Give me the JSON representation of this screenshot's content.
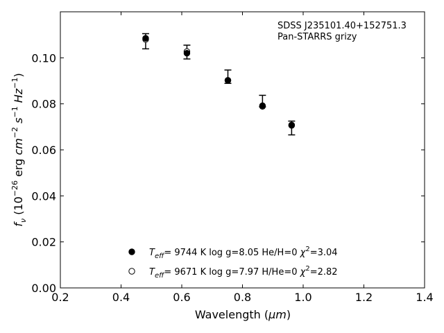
{
  "chart_data": {
    "type": "scatter",
    "annotation": [
      "SDSS J235101.40+152751.3",
      "Pan-STARRS grizy"
    ],
    "xlabel": "Wavelength (μm)",
    "ylabel": "f_ν (10^-26 erg cm^-2 s^-1 Hz^-1)",
    "xlim": [
      0.2,
      1.4
    ],
    "ylim": [
      0.0,
      0.12
    ],
    "xticks": [
      0.2,
      0.4,
      0.6,
      0.8,
      1.0,
      1.2,
      1.4
    ],
    "xtick_labels": [
      "0.2",
      "0.4",
      "0.6",
      "0.8",
      "1.0",
      "1.2",
      "1.4"
    ],
    "yticks": [
      0.0,
      0.02,
      0.04,
      0.06,
      0.08,
      0.1
    ],
    "ytick_labels": [
      "0.00",
      "0.02",
      "0.04",
      "0.06",
      "0.08",
      "0.10"
    ],
    "grid": false,
    "observed": {
      "x": [
        0.481,
        0.617,
        0.752,
        0.866,
        0.962
      ],
      "y": [
        0.1072,
        0.1025,
        0.0918,
        0.0812,
        0.0695
      ],
      "yerr": [
        0.0033,
        0.003,
        0.0029,
        0.0025,
        0.003
      ]
    },
    "series": [
      {
        "name": "Teff= 9744 K log g=8.05 He/H=0 χ2=3.04",
        "marker": "filled",
        "x": [
          0.481,
          0.617,
          0.752,
          0.866,
          0.962
        ],
        "y": [
          0.1085,
          0.102,
          0.0902,
          0.0792,
          0.0708
        ]
      },
      {
        "name": "Teff= 9671 K log g=7.97 H/He=0 χ2=2.82",
        "marker": "open",
        "x": [
          0.481,
          0.617,
          0.752,
          0.866,
          0.962
        ],
        "y": [
          0.108,
          0.1027,
          0.0902,
          0.0789,
          0.0706
        ]
      }
    ],
    "legend": [
      {
        "teff": "9744",
        "logg": "8.05",
        "comp": "He/H=0",
        "chi2": "3.04",
        "marker": "filled"
      },
      {
        "teff": "9671",
        "logg": "7.97",
        "comp": "H/He=0",
        "chi2": "2.82",
        "marker": "open"
      }
    ],
    "legend_position": "bottom-center"
  }
}
